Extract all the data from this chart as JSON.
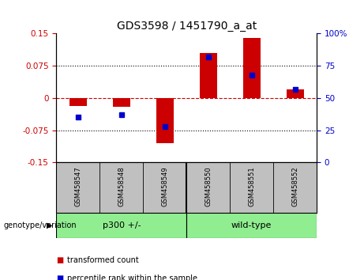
{
  "title": "GDS3598 / 1451790_a_at",
  "samples": [
    "GSM458547",
    "GSM458548",
    "GSM458549",
    "GSM458550",
    "GSM458551",
    "GSM458552"
  ],
  "transformed_count": [
    -0.018,
    -0.02,
    -0.105,
    0.105,
    0.14,
    0.02
  ],
  "percentile_rank": [
    35,
    37,
    28,
    82,
    68,
    57
  ],
  "group_p300": [
    0,
    1,
    2
  ],
  "group_wt": [
    3,
    4,
    5
  ],
  "group_p300_label": "p300 +/-",
  "group_wt_label": "wild-type",
  "group_color": "#90EE90",
  "label_panel_color": "#C0C0C0",
  "ylim_left": [
    -0.15,
    0.15
  ],
  "ylim_right": [
    0,
    100
  ],
  "yticks_left": [
    -0.15,
    -0.075,
    0,
    0.075,
    0.15
  ],
  "yticks_right": [
    0,
    25,
    50,
    75,
    100
  ],
  "bar_color": "#CC0000",
  "dot_color": "#0000CC",
  "zero_line_color": "#CC0000",
  "left_tick_color": "#CC0000",
  "right_tick_color": "#0000CC",
  "title_fontsize": 10,
  "legend_items": [
    {
      "label": "transformed count",
      "color": "#CC0000"
    },
    {
      "label": "percentile rank within the sample",
      "color": "#0000CC"
    }
  ]
}
